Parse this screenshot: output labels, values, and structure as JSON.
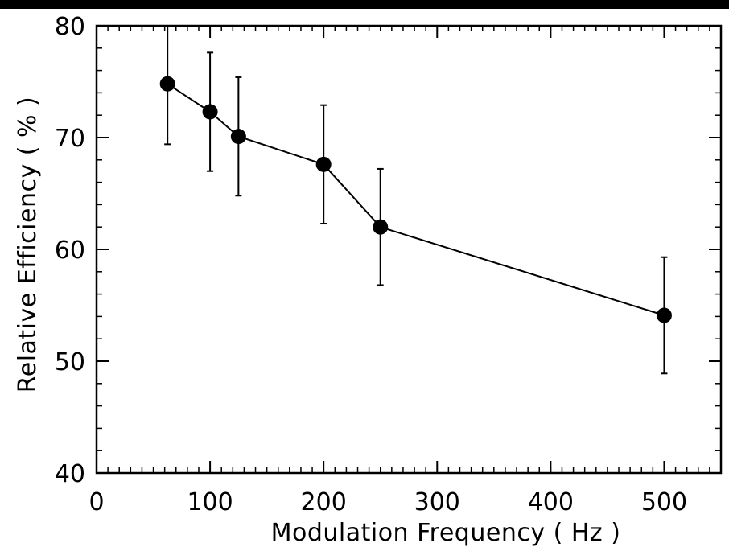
{
  "chart_data": {
    "type": "line",
    "title": "",
    "xlabel": "Modulation Frequency ( Hz )",
    "ylabel": "Relative Efficiency ( % )",
    "xlim": [
      0,
      550
    ],
    "ylim": [
      40,
      80
    ],
    "x_ticks": [
      0,
      100,
      200,
      300,
      400,
      500
    ],
    "y_ticks": [
      40,
      50,
      60,
      70,
      80
    ],
    "grid": false,
    "legend": "none",
    "marker": "filled-circle",
    "error_bars": true,
    "color": "#000000",
    "series": [
      {
        "x": [
          62.5,
          100,
          125,
          200,
          250,
          500
        ],
        "y": [
          74.8,
          72.3,
          70.1,
          67.6,
          62.0,
          54.1
        ],
        "yerr": [
          5.4,
          5.3,
          5.3,
          5.3,
          5.2,
          5.2
        ]
      }
    ]
  }
}
